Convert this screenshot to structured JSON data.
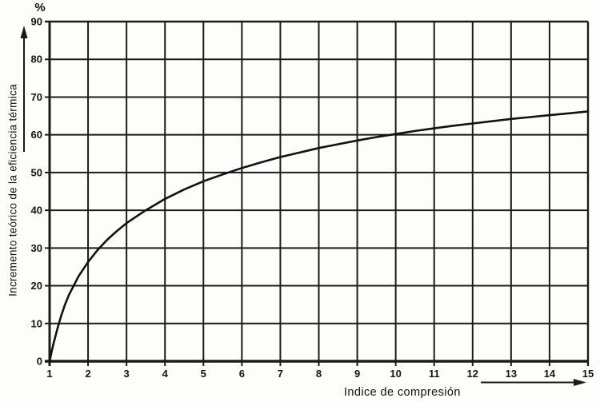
{
  "chart": {
    "y_unit": "%",
    "y_axis_title": "Incremento teórico de la eficiencia térmica",
    "x_axis_title": "Indice de compresión"
  },
  "chart_data": {
    "type": "line",
    "title": "",
    "xlabel": "Indice de compresión",
    "ylabel": "Incremento teórico de la eficiencia térmica (%)",
    "xlim": [
      1,
      15
    ],
    "ylim": [
      0,
      90
    ],
    "x_ticks": [
      1,
      2,
      3,
      4,
      5,
      6,
      7,
      8,
      9,
      10,
      11,
      12,
      13,
      14,
      15
    ],
    "y_ticks": [
      0,
      10,
      20,
      30,
      40,
      50,
      60,
      70,
      80,
      90
    ],
    "grid": true,
    "x": [
      1,
      1.02,
      1.05,
      1.1,
      1.2,
      1.3,
      1.4,
      1.5,
      1.75,
      2,
      2.25,
      2.5,
      2.75,
      3,
      3.5,
      4,
      4.5,
      5,
      5.5,
      6,
      6.5,
      7,
      7.5,
      8,
      8.5,
      9,
      9.5,
      10,
      10.5,
      11,
      11.5,
      12,
      12.5,
      13,
      13.5,
      14,
      14.5,
      15
    ],
    "y": [
      0,
      1.0,
      2.4,
      4.6,
      8.5,
      12.0,
      15.0,
      17.5,
      22.5,
      26.3,
      29.5,
      32.2,
      34.5,
      36.6,
      40.0,
      43.0,
      45.5,
      47.7,
      49.5,
      51.2,
      52.7,
      54.1,
      55.3,
      56.5,
      57.5,
      58.5,
      59.4,
      60.2,
      61.0,
      61.7,
      62.4,
      63.0,
      63.6,
      64.2,
      64.7,
      65.2,
      65.7,
      66.2
    ]
  }
}
